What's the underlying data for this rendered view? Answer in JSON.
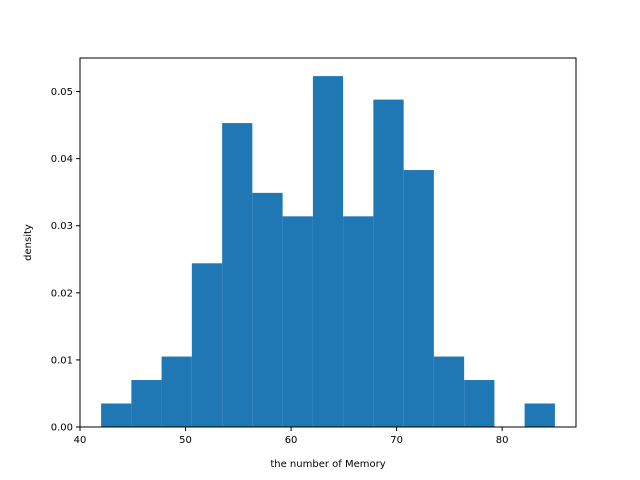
{
  "chart_data": {
    "type": "bar",
    "subtype": "histogram",
    "title": "",
    "xlabel": "the number of Memory",
    "ylabel": "density",
    "xlim": [
      40,
      87
    ],
    "ylim": [
      0,
      0.055
    ],
    "grid": false,
    "bar_color": "#1f77b4",
    "bin_edges": [
      42.0,
      44.87,
      47.73,
      50.6,
      53.47,
      56.33,
      59.2,
      62.07,
      64.93,
      67.8,
      70.67,
      73.53,
      76.4,
      79.27,
      82.13,
      85.0
    ],
    "values": [
      0.0035,
      0.007,
      0.0105,
      0.0244,
      0.0453,
      0.0349,
      0.0314,
      0.0523,
      0.0314,
      0.0488,
      0.0383,
      0.0105,
      0.007,
      0.0,
      0.0035
    ],
    "x_ticks": [
      40,
      50,
      60,
      70,
      80
    ],
    "x_tick_labels": [
      "40",
      "50",
      "60",
      "70",
      "80"
    ],
    "y_ticks": [
      0,
      0.01,
      0.02,
      0.03,
      0.04,
      0.05
    ],
    "y_tick_labels": [
      "0.00",
      "0.01",
      "0.02",
      "0.03",
      "0.04",
      "0.05"
    ]
  }
}
